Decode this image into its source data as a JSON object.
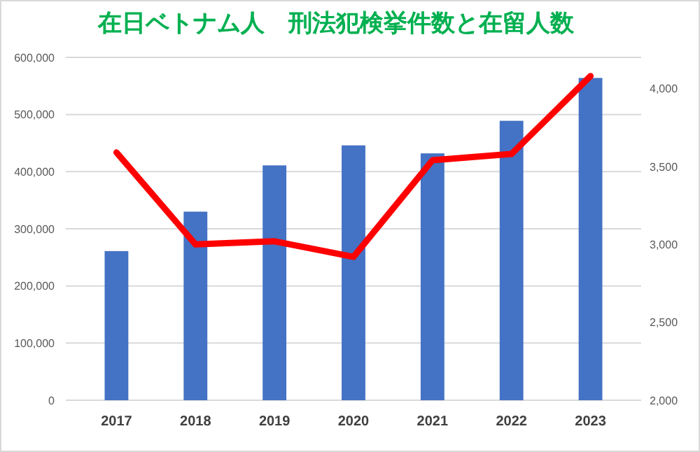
{
  "chart_data": {
    "type": "bar",
    "title": "在日ベトナム人　刑法犯検挙件数と在留人数",
    "categories": [
      "2017",
      "2018",
      "2019",
      "2020",
      "2021",
      "2022",
      "2023"
    ],
    "series": [
      {
        "color": "#4472c4",
        "values": [
          261000,
          330000,
          411000,
          446000,
          432000,
          489000,
          564000
        ]
      },
      {
        "type": "line",
        "axis": "y2",
        "color": "#ff0000",
        "values": [
          3590,
          3000,
          3020,
          2920,
          3540,
          3580,
          4080
        ],
        "marker": "none",
        "line_style": "solid"
      }
    ],
    "ylim": [
      0,
      600000
    ],
    "yticks": [
      {
        "value": 0,
        "label": "0"
      },
      {
        "value": 100000,
        "label": "100,000"
      },
      {
        "value": 200000,
        "label": "200,000"
      },
      {
        "value": 300000,
        "label": "300,000"
      },
      {
        "value": 400000,
        "label": "400,000"
      },
      {
        "value": 500000,
        "label": "500,000"
      },
      {
        "value": 600000,
        "label": "600,000"
      }
    ],
    "y2lim": [
      2000,
      4200
    ],
    "y2ticks": [
      {
        "value": 2000,
        "label": "2,000"
      },
      {
        "value": 2500,
        "label": "2,500"
      },
      {
        "value": 3000,
        "label": "3,000"
      },
      {
        "value": 3500,
        "label": "3,500"
      },
      {
        "value": 4000,
        "label": "4,000"
      }
    ],
    "grid": "y"
  }
}
